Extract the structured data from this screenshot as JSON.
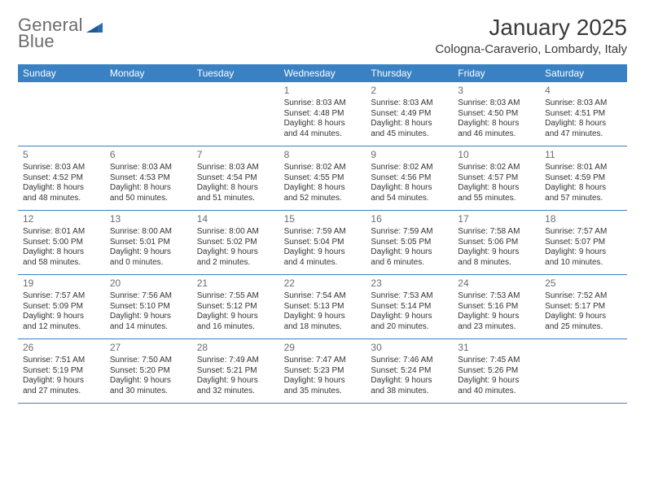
{
  "logo": {
    "word1": "General",
    "word2": "Blue"
  },
  "title": "January 2025",
  "location": "Cologna-Caraverio, Lombardy, Italy",
  "colors": {
    "header_bg": "#3a81c4",
    "header_text": "#ffffff",
    "row_border": "#3a81c4",
    "day_num": "#6c6c6c",
    "body_text": "#333333",
    "logo_text": "#6c6c6c",
    "logo_accent": "#2a6bb0"
  },
  "days_of_week": [
    "Sunday",
    "Monday",
    "Tuesday",
    "Wednesday",
    "Thursday",
    "Friday",
    "Saturday"
  ],
  "layout": {
    "columns": 7,
    "rows": 5,
    "blank_leading_cells": 3
  },
  "days": [
    {
      "n": "1",
      "sr": "Sunrise: 8:03 AM",
      "ss": "Sunset: 4:48 PM",
      "d1": "Daylight: 8 hours",
      "d2": "and 44 minutes."
    },
    {
      "n": "2",
      "sr": "Sunrise: 8:03 AM",
      "ss": "Sunset: 4:49 PM",
      "d1": "Daylight: 8 hours",
      "d2": "and 45 minutes."
    },
    {
      "n": "3",
      "sr": "Sunrise: 8:03 AM",
      "ss": "Sunset: 4:50 PM",
      "d1": "Daylight: 8 hours",
      "d2": "and 46 minutes."
    },
    {
      "n": "4",
      "sr": "Sunrise: 8:03 AM",
      "ss": "Sunset: 4:51 PM",
      "d1": "Daylight: 8 hours",
      "d2": "and 47 minutes."
    },
    {
      "n": "5",
      "sr": "Sunrise: 8:03 AM",
      "ss": "Sunset: 4:52 PM",
      "d1": "Daylight: 8 hours",
      "d2": "and 48 minutes."
    },
    {
      "n": "6",
      "sr": "Sunrise: 8:03 AM",
      "ss": "Sunset: 4:53 PM",
      "d1": "Daylight: 8 hours",
      "d2": "and 50 minutes."
    },
    {
      "n": "7",
      "sr": "Sunrise: 8:03 AM",
      "ss": "Sunset: 4:54 PM",
      "d1": "Daylight: 8 hours",
      "d2": "and 51 minutes."
    },
    {
      "n": "8",
      "sr": "Sunrise: 8:02 AM",
      "ss": "Sunset: 4:55 PM",
      "d1": "Daylight: 8 hours",
      "d2": "and 52 minutes."
    },
    {
      "n": "9",
      "sr": "Sunrise: 8:02 AM",
      "ss": "Sunset: 4:56 PM",
      "d1": "Daylight: 8 hours",
      "d2": "and 54 minutes."
    },
    {
      "n": "10",
      "sr": "Sunrise: 8:02 AM",
      "ss": "Sunset: 4:57 PM",
      "d1": "Daylight: 8 hours",
      "d2": "and 55 minutes."
    },
    {
      "n": "11",
      "sr": "Sunrise: 8:01 AM",
      "ss": "Sunset: 4:59 PM",
      "d1": "Daylight: 8 hours",
      "d2": "and 57 minutes."
    },
    {
      "n": "12",
      "sr": "Sunrise: 8:01 AM",
      "ss": "Sunset: 5:00 PM",
      "d1": "Daylight: 8 hours",
      "d2": "and 58 minutes."
    },
    {
      "n": "13",
      "sr": "Sunrise: 8:00 AM",
      "ss": "Sunset: 5:01 PM",
      "d1": "Daylight: 9 hours",
      "d2": "and 0 minutes."
    },
    {
      "n": "14",
      "sr": "Sunrise: 8:00 AM",
      "ss": "Sunset: 5:02 PM",
      "d1": "Daylight: 9 hours",
      "d2": "and 2 minutes."
    },
    {
      "n": "15",
      "sr": "Sunrise: 7:59 AM",
      "ss": "Sunset: 5:04 PM",
      "d1": "Daylight: 9 hours",
      "d2": "and 4 minutes."
    },
    {
      "n": "16",
      "sr": "Sunrise: 7:59 AM",
      "ss": "Sunset: 5:05 PM",
      "d1": "Daylight: 9 hours",
      "d2": "and 6 minutes."
    },
    {
      "n": "17",
      "sr": "Sunrise: 7:58 AM",
      "ss": "Sunset: 5:06 PM",
      "d1": "Daylight: 9 hours",
      "d2": "and 8 minutes."
    },
    {
      "n": "18",
      "sr": "Sunrise: 7:57 AM",
      "ss": "Sunset: 5:07 PM",
      "d1": "Daylight: 9 hours",
      "d2": "and 10 minutes."
    },
    {
      "n": "19",
      "sr": "Sunrise: 7:57 AM",
      "ss": "Sunset: 5:09 PM",
      "d1": "Daylight: 9 hours",
      "d2": "and 12 minutes."
    },
    {
      "n": "20",
      "sr": "Sunrise: 7:56 AM",
      "ss": "Sunset: 5:10 PM",
      "d1": "Daylight: 9 hours",
      "d2": "and 14 minutes."
    },
    {
      "n": "21",
      "sr": "Sunrise: 7:55 AM",
      "ss": "Sunset: 5:12 PM",
      "d1": "Daylight: 9 hours",
      "d2": "and 16 minutes."
    },
    {
      "n": "22",
      "sr": "Sunrise: 7:54 AM",
      "ss": "Sunset: 5:13 PM",
      "d1": "Daylight: 9 hours",
      "d2": "and 18 minutes."
    },
    {
      "n": "23",
      "sr": "Sunrise: 7:53 AM",
      "ss": "Sunset: 5:14 PM",
      "d1": "Daylight: 9 hours",
      "d2": "and 20 minutes."
    },
    {
      "n": "24",
      "sr": "Sunrise: 7:53 AM",
      "ss": "Sunset: 5:16 PM",
      "d1": "Daylight: 9 hours",
      "d2": "and 23 minutes."
    },
    {
      "n": "25",
      "sr": "Sunrise: 7:52 AM",
      "ss": "Sunset: 5:17 PM",
      "d1": "Daylight: 9 hours",
      "d2": "and 25 minutes."
    },
    {
      "n": "26",
      "sr": "Sunrise: 7:51 AM",
      "ss": "Sunset: 5:19 PM",
      "d1": "Daylight: 9 hours",
      "d2": "and 27 minutes."
    },
    {
      "n": "27",
      "sr": "Sunrise: 7:50 AM",
      "ss": "Sunset: 5:20 PM",
      "d1": "Daylight: 9 hours",
      "d2": "and 30 minutes."
    },
    {
      "n": "28",
      "sr": "Sunrise: 7:49 AM",
      "ss": "Sunset: 5:21 PM",
      "d1": "Daylight: 9 hours",
      "d2": "and 32 minutes."
    },
    {
      "n": "29",
      "sr": "Sunrise: 7:47 AM",
      "ss": "Sunset: 5:23 PM",
      "d1": "Daylight: 9 hours",
      "d2": "and 35 minutes."
    },
    {
      "n": "30",
      "sr": "Sunrise: 7:46 AM",
      "ss": "Sunset: 5:24 PM",
      "d1": "Daylight: 9 hours",
      "d2": "and 38 minutes."
    },
    {
      "n": "31",
      "sr": "Sunrise: 7:45 AM",
      "ss": "Sunset: 5:26 PM",
      "d1": "Daylight: 9 hours",
      "d2": "and 40 minutes."
    }
  ]
}
